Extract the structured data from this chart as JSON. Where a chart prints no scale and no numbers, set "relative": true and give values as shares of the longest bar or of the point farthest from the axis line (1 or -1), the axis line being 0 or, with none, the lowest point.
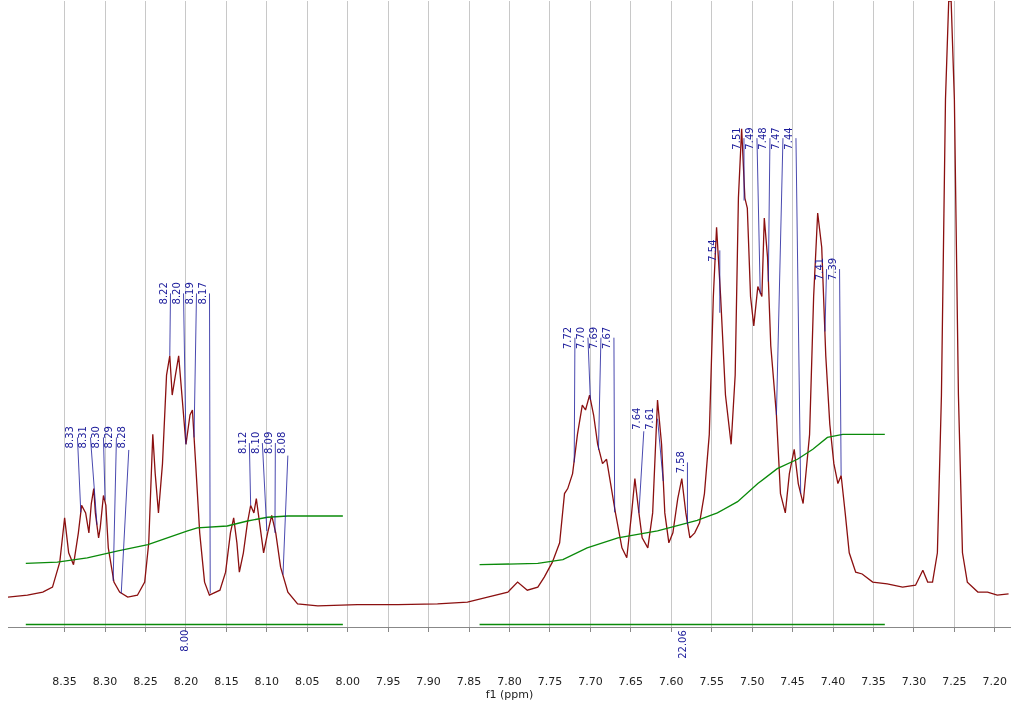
{
  "chart_data": {
    "type": "line",
    "relative": true,
    "xlabel": "f1 (ppm)",
    "xlim": [
      8.42,
      7.18
    ],
    "xticks": [
      {
        "value": 8.35,
        "label": "8.35"
      },
      {
        "value": 8.3,
        "label": "8.30"
      },
      {
        "value": 8.25,
        "label": "8.25"
      },
      {
        "value": 8.2,
        "label": "8.20"
      },
      {
        "value": 8.15,
        "label": "8.15"
      },
      {
        "value": 8.1,
        "label": "8.10"
      },
      {
        "value": 8.05,
        "label": "8.05"
      },
      {
        "value": 8.0,
        "label": "8.00"
      },
      {
        "value": 7.95,
        "label": "7.95"
      },
      {
        "value": 7.9,
        "label": "7.90"
      },
      {
        "value": 7.85,
        "label": "7.85"
      },
      {
        "value": 7.8,
        "label": "7.80"
      },
      {
        "value": 7.75,
        "label": "7.75"
      },
      {
        "value": 7.7,
        "label": "7.70"
      },
      {
        "value": 7.65,
        "label": "7.65"
      },
      {
        "value": 7.6,
        "label": "7.60"
      },
      {
        "value": 7.55,
        "label": "7.55"
      },
      {
        "value": 7.5,
        "label": "7.50"
      },
      {
        "value": 7.45,
        "label": "7.45"
      },
      {
        "value": 7.4,
        "label": "7.40"
      },
      {
        "value": 7.35,
        "label": "7.35"
      },
      {
        "value": 7.3,
        "label": "7.30"
      },
      {
        "value": 7.25,
        "label": "7.25"
      },
      {
        "value": 7.2,
        "label": "7.20"
      }
    ],
    "grid": "x",
    "series": [
      {
        "color": "#8b1010",
        "x": [
          8.42,
          8.396,
          8.377,
          8.365,
          8.356,
          8.35,
          8.345,
          8.339,
          8.333,
          8.329,
          8.324,
          8.32,
          8.317,
          8.314,
          8.312,
          8.308,
          8.306,
          8.302,
          8.299,
          8.296,
          8.289,
          8.282,
          8.272,
          8.26,
          8.251,
          8.246,
          8.241,
          8.238,
          8.234,
          8.229,
          8.224,
          8.22,
          8.217,
          8.213,
          8.209,
          8.205,
          8.2,
          8.195,
          8.192,
          8.188,
          8.183,
          8.177,
          8.171,
          8.158,
          8.151,
          8.145,
          8.141,
          8.137,
          8.134,
          8.129,
          8.124,
          8.12,
          8.116,
          8.113,
          8.109,
          8.104,
          8.099,
          8.094,
          8.089,
          8.083,
          8.074,
          8.062,
          8.037,
          7.988,
          7.938,
          7.889,
          7.852,
          7.827,
          7.802,
          7.79,
          7.778,
          7.765,
          7.757,
          7.747,
          7.738,
          7.732,
          7.728,
          7.722,
          7.716,
          7.71,
          7.706,
          7.701,
          7.696,
          7.691,
          7.685,
          7.68,
          7.675,
          7.669,
          7.661,
          7.655,
          7.649,
          7.645,
          7.64,
          7.636,
          7.629,
          7.623,
          7.617,
          7.612,
          7.608,
          7.603,
          7.598,
          7.592,
          7.587,
          7.582,
          7.577,
          7.571,
          7.565,
          7.559,
          7.553,
          7.548,
          7.544,
          7.539,
          7.533,
          7.526,
          7.521,
          7.517,
          7.513,
          7.509,
          7.506,
          7.502,
          7.498,
          7.493,
          7.488,
          7.485,
          7.481,
          7.477,
          7.474,
          7.47,
          7.465,
          7.459,
          7.454,
          7.448,
          7.443,
          7.437,
          7.429,
          7.424,
          7.419,
          7.414,
          7.409,
          7.404,
          7.399,
          7.394,
          7.39,
          7.385,
          7.38,
          7.372,
          7.364,
          7.351,
          7.333,
          7.314,
          7.298,
          7.289,
          7.283,
          7.277,
          7.271,
          7.266,
          7.261,
          7.257,
          7.254,
          7.25,
          7.245,
          7.24,
          7.234,
          7.221,
          7.209,
          7.197,
          7.183
        ],
        "values": [
          0.044,
          0.047,
          0.052,
          0.06,
          0.1,
          0.171,
          0.115,
          0.096,
          0.147,
          0.191,
          0.179,
          0.147,
          0.194,
          0.218,
          0.179,
          0.139,
          0.155,
          0.207,
          0.191,
          0.123,
          0.068,
          0.052,
          0.044,
          0.047,
          0.068,
          0.131,
          0.305,
          0.242,
          0.179,
          0.258,
          0.4,
          0.431,
          0.368,
          0.4,
          0.431,
          0.368,
          0.289,
          0.336,
          0.344,
          0.258,
          0.147,
          0.068,
          0.047,
          0.055,
          0.084,
          0.147,
          0.171,
          0.131,
          0.084,
          0.115,
          0.163,
          0.191,
          0.179,
          0.202,
          0.163,
          0.115,
          0.147,
          0.175,
          0.147,
          0.092,
          0.052,
          0.033,
          0.03,
          0.032,
          0.032,
          0.033,
          0.036,
          0.044,
          0.052,
          0.068,
          0.055,
          0.06,
          0.076,
          0.1,
          0.131,
          0.21,
          0.218,
          0.242,
          0.305,
          0.352,
          0.344,
          0.368,
          0.336,
          0.289,
          0.258,
          0.265,
          0.226,
          0.179,
          0.123,
          0.107,
          0.179,
          0.234,
          0.179,
          0.139,
          0.123,
          0.179,
          0.36,
          0.289,
          0.179,
          0.131,
          0.147,
          0.202,
          0.234,
          0.179,
          0.139,
          0.147,
          0.163,
          0.21,
          0.305,
          0.526,
          0.637,
          0.526,
          0.368,
          0.289,
          0.4,
          0.684,
          0.795,
          0.684,
          0.668,
          0.526,
          0.479,
          0.542,
          0.526,
          0.652,
          0.589,
          0.447,
          0.4,
          0.336,
          0.21,
          0.179,
          0.242,
          0.281,
          0.226,
          0.194,
          0.305,
          0.526,
          0.66,
          0.605,
          0.431,
          0.321,
          0.258,
          0.226,
          0.239,
          0.179,
          0.115,
          0.084,
          0.081,
          0.068,
          0.065,
          0.06,
          0.063,
          0.087,
          0.068,
          0.068,
          0.115,
          0.368,
          0.842,
          1.0,
          1.0,
          0.842,
          0.368,
          0.115,
          0.068,
          0.052,
          0.052,
          0.047,
          0.049
        ]
      },
      {
        "color": "#0a8a0a",
        "x": [
          8.398,
          8.359,
          8.322,
          8.284,
          8.247,
          8.223,
          8.198,
          8.186,
          8.149,
          8.124,
          8.099,
          8.074,
          8.006
        ],
        "values": [
          0.098,
          0.1,
          0.107,
          0.118,
          0.128,
          0.139,
          0.15,
          0.155,
          0.158,
          0.166,
          0.172,
          0.174,
          0.174
        ]
      },
      {
        "color": "#0a8a0a",
        "x": [
          7.837,
          7.765,
          7.734,
          7.704,
          7.666,
          7.617,
          7.568,
          7.543,
          7.518,
          7.493,
          7.469,
          7.444,
          7.425,
          7.407,
          7.388,
          7.336
        ],
        "values": [
          0.096,
          0.098,
          0.104,
          0.123,
          0.139,
          0.15,
          0.167,
          0.179,
          0.197,
          0.226,
          0.25,
          0.265,
          0.281,
          0.3,
          0.305,
          0.305
        ]
      },
      {
        "color": "#0a8a0a",
        "x": [
          8.398,
          8.006
        ],
        "values": [
          0,
          0
        ]
      },
      {
        "color": "#0a8a0a",
        "x": [
          7.837,
          7.336
        ],
        "values": [
          0,
          0
        ]
      }
    ],
    "annotations": [
      {
        "text": "8.33",
        "x": 8.33,
        "y": 0.18
      },
      {
        "text": "8.31",
        "x": 8.31,
        "y": 0.16
      },
      {
        "text": "8.30",
        "x": 8.3,
        "y": 0.2
      },
      {
        "text": "8.29",
        "x": 8.29,
        "y": 0.07
      },
      {
        "text": "8.28",
        "x": 8.28,
        "y": 0.05
      },
      {
        "text": "8.22",
        "x": 8.22,
        "y": 0.431
      },
      {
        "text": "8.20",
        "x": 8.2,
        "y": 0.289
      },
      {
        "text": "8.19",
        "x": 8.19,
        "y": 0.3
      },
      {
        "text": "8.17",
        "x": 8.17,
        "y": 0.05
      },
      {
        "text": "8.12",
        "x": 8.12,
        "y": 0.191
      },
      {
        "text": "8.10",
        "x": 8.1,
        "y": 0.15
      },
      {
        "text": "8.09",
        "x": 8.09,
        "y": 0.147
      },
      {
        "text": "8.08",
        "x": 8.08,
        "y": 0.08
      },
      {
        "text": "7.72",
        "x": 7.72,
        "y": 0.26
      },
      {
        "text": "7.70",
        "x": 7.7,
        "y": 0.36
      },
      {
        "text": "7.69",
        "x": 7.69,
        "y": 0.28
      },
      {
        "text": "7.67",
        "x": 7.67,
        "y": 0.18
      },
      {
        "text": "7.64",
        "x": 7.64,
        "y": 0.179
      },
      {
        "text": "7.61",
        "x": 7.61,
        "y": 0.23
      },
      {
        "text": "7.58",
        "x": 7.58,
        "y": 0.16
      },
      {
        "text": "7.54",
        "x": 7.54,
        "y": 0.5
      },
      {
        "text": "7.51",
        "x": 7.51,
        "y": 0.68
      },
      {
        "text": "7.49",
        "x": 7.49,
        "y": 0.53
      },
      {
        "text": "7.48",
        "x": 7.48,
        "y": 0.55
      },
      {
        "text": "7.47",
        "x": 7.47,
        "y": 0.336
      },
      {
        "text": "7.44",
        "x": 7.44,
        "y": 0.21
      },
      {
        "text": "7.41",
        "x": 7.41,
        "y": 0.47
      },
      {
        "text": "7.39",
        "x": 7.39,
        "y": 0.239
      },
      {
        "text": "8.00",
        "x": 8.202,
        "y": 0
      },
      {
        "text": "22.06",
        "x": 7.587,
        "y": 0
      }
    ]
  }
}
